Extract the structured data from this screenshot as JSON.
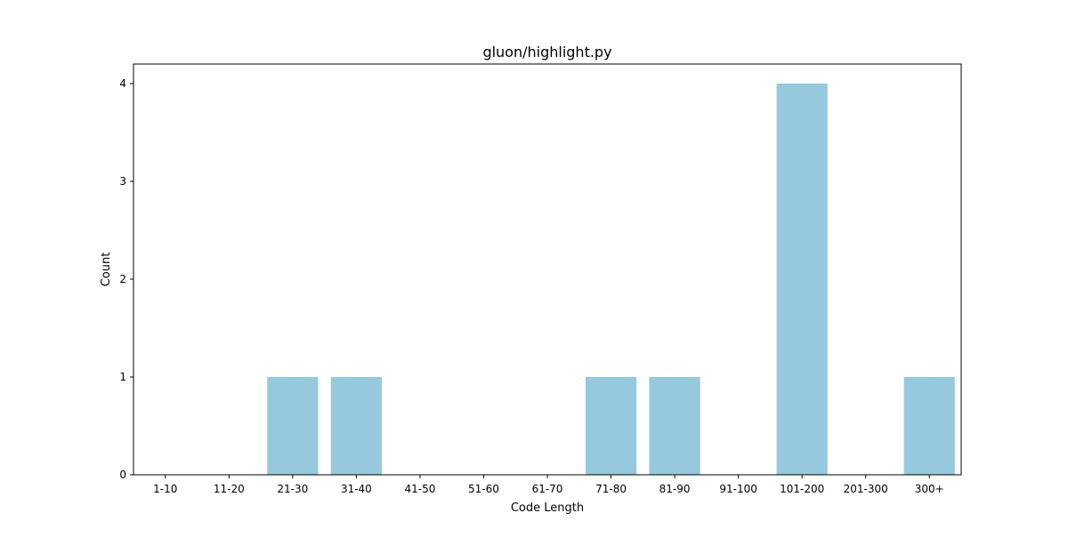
{
  "chart_data": {
    "type": "bar",
    "title": "gluon/highlight.py",
    "xlabel": "Code Length",
    "ylabel": "Count",
    "categories": [
      "1-10",
      "11-20",
      "21-30",
      "31-40",
      "41-50",
      "51-60",
      "61-70",
      "71-80",
      "81-90",
      "91-100",
      "101-200",
      "201-300",
      "300+"
    ],
    "values": [
      0,
      0,
      1,
      1,
      0,
      0,
      0,
      1,
      1,
      0,
      4,
      0,
      1
    ],
    "ylim": [
      0,
      4.2
    ],
    "yticks": [
      0,
      1,
      2,
      3,
      4
    ],
    "grid": false,
    "legend": "none",
    "colors": {
      "bar": "#96c9de",
      "axes": "#000000",
      "background": "#ffffff"
    }
  }
}
